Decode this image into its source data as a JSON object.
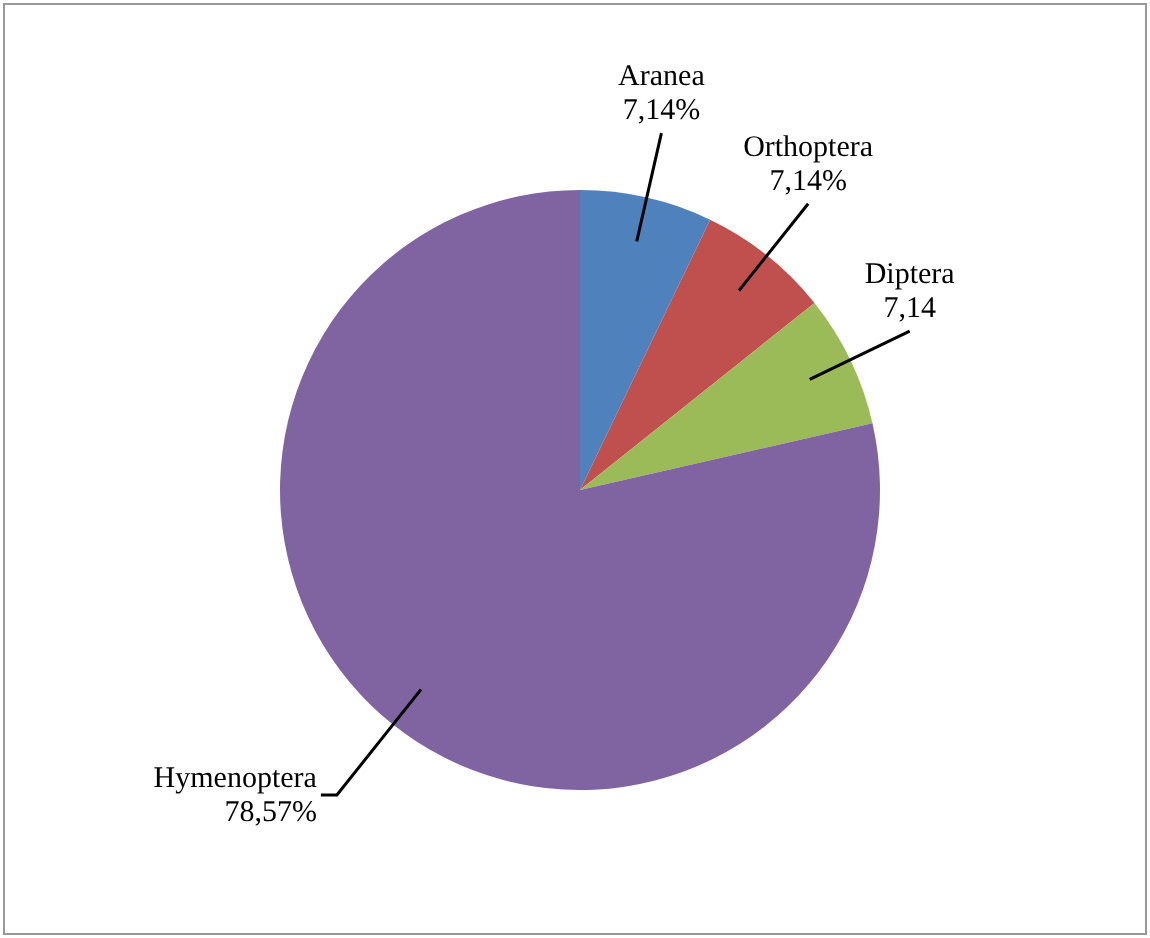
{
  "chart_data": {
    "type": "pie",
    "categories": [
      "Aranea",
      "Orthoptera",
      "Diptera",
      "Hymenoptera"
    ],
    "values": [
      7.14,
      7.14,
      7.14,
      78.57
    ],
    "colors": [
      "#4f81bd",
      "#c0504d",
      "#9bbb59",
      "#8064a2"
    ],
    "value_labels": [
      "7,14%",
      "7,14%",
      "7,14",
      "78,57%"
    ],
    "legend": false
  }
}
